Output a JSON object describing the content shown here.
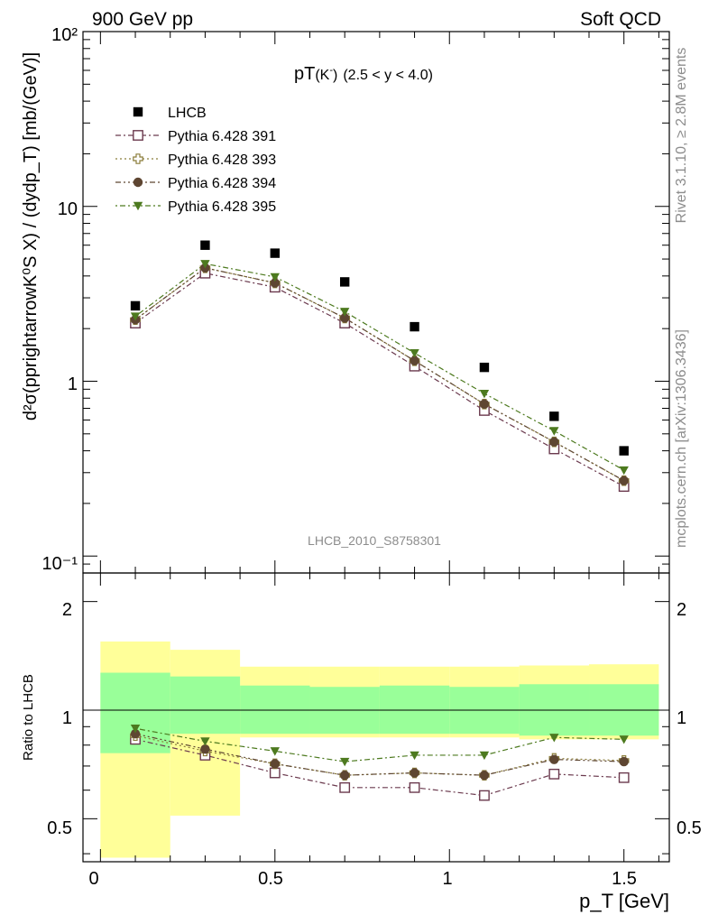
{
  "header": {
    "left": "900 GeV pp",
    "right": "Soft QCD"
  },
  "side": {
    "top": "Rivet 3.1.10, ≥ 2.8M events",
    "bottom": "mcplots.cern.ch [arXiv:1306.3436]"
  },
  "plot_title": {
    "main": "pT",
    "sub": "(K",
    "sup": "-",
    "close": ")",
    "range": "(2.5 < y < 4.0)"
  },
  "analysis_label": "LHCB_2010_S8758301",
  "legend": [
    {
      "label": "LHCB"
    },
    {
      "label": "Pythia 6.428 391"
    },
    {
      "label": "Pythia 6.428 393"
    },
    {
      "label": "Pythia 6.428 394"
    },
    {
      "label": "Pythia 6.428 395"
    }
  ],
  "axes": {
    "top_ylabel": "d²σ(pprightarrowK⁰S X) / (dydp_T) [mb/(GeV)]",
    "bottom_ylabel": "Ratio to LHCB",
    "xlabel": "p_T [GeV]",
    "x_ticks": [
      "0",
      "0.5",
      "1",
      "1.5"
    ],
    "top_y_ticks": [
      "10⁻¹",
      "1",
      "10",
      "10²"
    ],
    "ratio_y_ticks": [
      "0.5",
      "1",
      "2"
    ]
  },
  "chart_data": [
    {
      "type": "scatter",
      "panel": "main",
      "x_scale": "linear",
      "y_scale": "log",
      "xlim": [
        -0.05,
        1.63
      ],
      "ylim": [
        0.08,
        100
      ],
      "x": [
        0.1,
        0.3,
        0.5,
        0.7,
        0.9,
        1.1,
        1.3,
        1.5
      ],
      "series": [
        {
          "name": "LHCB",
          "color": "#000000",
          "marker": "square-filled",
          "values": [
            2.7,
            6.0,
            5.4,
            3.7,
            2.05,
            1.2,
            0.63,
            0.4
          ]
        },
        {
          "name": "Pythia 6.428 391",
          "color": "#6b3a4e",
          "marker": "square-open",
          "values": [
            2.15,
            4.15,
            3.45,
            2.15,
            1.22,
            0.68,
            0.41,
            0.25
          ]
        },
        {
          "name": "Pythia 6.428 393",
          "color": "#8b7d3a",
          "marker": "cross-open",
          "values": [
            2.25,
            4.45,
            3.65,
            2.3,
            1.31,
            0.74,
            0.45,
            0.27
          ]
        },
        {
          "name": "Pythia 6.428 394",
          "color": "#5e4632",
          "marker": "circle-filled",
          "values": [
            2.25,
            4.45,
            3.65,
            2.3,
            1.31,
            0.74,
            0.45,
            0.27
          ]
        },
        {
          "name": "Pythia 6.428 395",
          "color": "#4d7a1f",
          "marker": "triangle-down-filled",
          "values": [
            2.35,
            4.7,
            3.95,
            2.5,
            1.45,
            0.85,
            0.52,
            0.31
          ]
        }
      ]
    },
    {
      "type": "scatter",
      "panel": "ratio",
      "x_scale": "linear",
      "y_scale": "log",
      "xlim": [
        -0.05,
        1.63
      ],
      "ylim": [
        0.38,
        2.4
      ],
      "x": [
        0.1,
        0.3,
        0.5,
        0.7,
        0.9,
        1.1,
        1.3,
        1.5
      ],
      "bands": {
        "bin_edges": [
          0.0,
          0.2,
          0.4,
          0.6,
          0.8,
          1.0,
          1.2,
          1.4,
          1.6
        ],
        "yellow_low": [
          0.39,
          0.51,
          0.84,
          0.84,
          0.84,
          0.84,
          0.83,
          0.83
        ],
        "yellow_high": [
          1.55,
          1.47,
          1.32,
          1.32,
          1.32,
          1.32,
          1.33,
          1.34
        ],
        "green_low": [
          0.76,
          0.86,
          0.86,
          0.86,
          0.86,
          0.86,
          0.85,
          0.85
        ],
        "green_high": [
          1.27,
          1.24,
          1.17,
          1.16,
          1.17,
          1.16,
          1.18,
          1.18
        ]
      },
      "series": [
        {
          "name": "Pythia 6.428 391",
          "color": "#6b3a4e",
          "marker": "square-open",
          "values": [
            0.83,
            0.75,
            0.67,
            0.61,
            0.61,
            0.58,
            0.665,
            0.65
          ]
        },
        {
          "name": "Pythia 6.428 393",
          "color": "#8b7d3a",
          "marker": "cross-open",
          "values": [
            0.85,
            0.77,
            0.71,
            0.66,
            0.67,
            0.66,
            0.735,
            0.725
          ]
        },
        {
          "name": "Pythia 6.428 394",
          "color": "#5e4632",
          "marker": "circle-filled",
          "values": [
            0.86,
            0.78,
            0.71,
            0.66,
            0.67,
            0.66,
            0.73,
            0.72
          ]
        },
        {
          "name": "Pythia 6.428 395",
          "color": "#4d7a1f",
          "marker": "triangle-down-filled",
          "values": [
            0.89,
            0.82,
            0.77,
            0.72,
            0.75,
            0.75,
            0.84,
            0.83
          ]
        }
      ]
    }
  ]
}
